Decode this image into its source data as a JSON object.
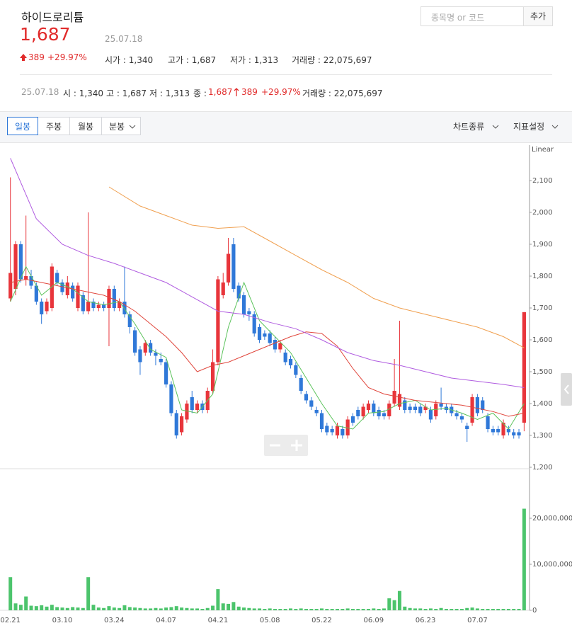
{
  "header": {
    "title": "하이드로리튬",
    "price": "1,687",
    "date": "25.07.18",
    "change": "389",
    "change_pct": "+29.97%",
    "open": "시가 : 1,340",
    "high": "고가 : 1,687",
    "low": "저가 : 1,313",
    "volume": "거래량 : 22,075,697"
  },
  "search": {
    "placeholder": "종목명 or 코드",
    "button": "추가"
  },
  "detail": {
    "date": "25.07.18",
    "open": "시 : 1,340",
    "high": "고 : 1,687",
    "low": "저 : 1,313",
    "close_label": "종 :",
    "close": "1,687",
    "change": "389",
    "change_pct": "+29.97%",
    "volume": "거래량 : 22,075,697"
  },
  "toolbar": {
    "tabs": [
      "일봉",
      "주봉",
      "월봉",
      "분봉"
    ],
    "chart_type": "차트종류",
    "indicators": "지표설정"
  },
  "chart_data": {
    "type": "candlestick",
    "scale_label": "Linear",
    "categories": [
      "02.21",
      null,
      null,
      null,
      null,
      null,
      null,
      null,
      null,
      null,
      "03.10",
      null,
      null,
      null,
      null,
      null,
      null,
      null,
      null,
      null,
      "03.24",
      null,
      null,
      null,
      null,
      null,
      null,
      null,
      null,
      null,
      "04.07",
      null,
      null,
      null,
      null,
      null,
      null,
      null,
      null,
      null,
      "04.21",
      null,
      null,
      null,
      null,
      null,
      null,
      null,
      null,
      null,
      "05.08",
      null,
      null,
      null,
      null,
      null,
      null,
      null,
      null,
      null,
      "05.22",
      null,
      null,
      null,
      null,
      null,
      null,
      null,
      null,
      null,
      "06.09",
      null,
      null,
      null,
      null,
      null,
      null,
      null,
      null,
      null,
      "06.23",
      null,
      null,
      null,
      null,
      null,
      null,
      null,
      null,
      null,
      "07.07",
      null,
      null,
      null,
      null,
      null,
      null,
      null,
      null,
      null
    ],
    "open": [
      1730,
      1760,
      1900,
      1790,
      1800,
      1770,
      1720,
      1690,
      1700,
      1810,
      1780,
      1740,
      1770,
      1700,
      1740,
      1690,
      1720,
      1700,
      1710,
      1700,
      1760,
      1700,
      1720,
      1680,
      1630,
      1570,
      1560,
      1590,
      1560,
      1540,
      1530,
      1460,
      1370,
      1310,
      1350,
      1420,
      1380,
      1400,
      1380,
      1440,
      1530,
      1740,
      1780,
      1900,
      1770,
      1740,
      1690,
      1680,
      1640,
      1620,
      1620,
      1600,
      1570,
      1560,
      1540,
      1520,
      1480,
      1430,
      1410,
      1380,
      1370,
      1330,
      1320,
      1300,
      1320,
      1300,
      1360,
      1380,
      1360,
      1380,
      1400,
      1380,
      1370,
      1360,
      1400,
      1390,
      1410,
      1390,
      1390,
      1390,
      1380,
      1380,
      1360,
      1400,
      1390,
      1390,
      1370,
      1360,
      1330,
      1340,
      1420,
      1410,
      1360,
      1320,
      1320,
      1300,
      1320,
      1310,
      1310,
      1340
    ],
    "high": [
      2110,
      1910,
      1910,
      1990,
      1820,
      1780,
      1730,
      1730,
      1840,
      1820,
      1790,
      1800,
      1780,
      1780,
      1750,
      2000,
      1730,
      1720,
      1720,
      1770,
      1770,
      1730,
      1830,
      1690,
      1640,
      1580,
      1600,
      1600,
      1570,
      1560,
      1540,
      1470,
      1380,
      1370,
      1410,
      1440,
      1410,
      1410,
      1450,
      1570,
      1800,
      1810,
      1920,
      1920,
      1780,
      1750,
      1700,
      1690,
      1650,
      1630,
      1630,
      1610,
      1600,
      1570,
      1550,
      1530,
      1490,
      1440,
      1420,
      1390,
      1380,
      1340,
      1330,
      1340,
      1330,
      1360,
      1370,
      1390,
      1400,
      1410,
      1410,
      1390,
      1380,
      1410,
      1540,
      1660,
      1420,
      1400,
      1400,
      1400,
      1400,
      1390,
      1410,
      1450,
      1400,
      1400,
      1380,
      1370,
      1340,
      1430,
      1430,
      1420,
      1370,
      1330,
      1330,
      1350,
      1330,
      1320,
      1320,
      1687
    ],
    "low": [
      1720,
      1740,
      1780,
      1770,
      1760,
      1710,
      1650,
      1680,
      1690,
      1770,
      1740,
      1730,
      1720,
      1690,
      1680,
      1680,
      1690,
      1690,
      1690,
      1580,
      1690,
      1690,
      1670,
      1620,
      1550,
      1490,
      1550,
      1550,
      1520,
      1520,
      1450,
      1360,
      1290,
      1300,
      1340,
      1370,
      1370,
      1370,
      1370,
      1430,
      1520,
      1730,
      1770,
      1750,
      1720,
      1670,
      1660,
      1610,
      1590,
      1600,
      1580,
      1560,
      1560,
      1520,
      1510,
      1480,
      1430,
      1400,
      1380,
      1360,
      1310,
      1300,
      1300,
      1290,
      1290,
      1290,
      1330,
      1350,
      1350,
      1370,
      1360,
      1350,
      1350,
      1350,
      1390,
      1380,
      1370,
      1370,
      1370,
      1360,
      1370,
      1340,
      1350,
      1380,
      1370,
      1360,
      1350,
      1340,
      1280,
      1330,
      1360,
      1370,
      1310,
      1300,
      1300,
      1290,
      1300,
      1290,
      1290,
      1313
    ],
    "close": [
      1810,
      1900,
      1790,
      1800,
      1770,
      1720,
      1680,
      1720,
      1830,
      1780,
      1750,
      1780,
      1730,
      1770,
      1690,
      1720,
      1700,
      1710,
      1700,
      1760,
      1700,
      1720,
      1680,
      1640,
      1560,
      1530,
      1590,
      1560,
      1550,
      1530,
      1460,
      1370,
      1300,
      1360,
      1400,
      1380,
      1400,
      1380,
      1440,
      1530,
      1790,
      1780,
      1870,
      1760,
      1730,
      1680,
      1680,
      1620,
      1600,
      1610,
      1590,
      1570,
      1590,
      1530,
      1520,
      1490,
      1440,
      1410,
      1390,
      1370,
      1320,
      1310,
      1310,
      1330,
      1300,
      1350,
      1340,
      1360,
      1390,
      1400,
      1370,
      1360,
      1360,
      1400,
      1440,
      1430,
      1380,
      1380,
      1380,
      1370,
      1390,
      1350,
      1400,
      1390,
      1380,
      1370,
      1360,
      1350,
      1320,
      1420,
      1370,
      1380,
      1320,
      1310,
      1310,
      1340,
      1310,
      1300,
      1300,
      1687
    ],
    "up_color": "#e8353b",
    "down_color": "#2f78d8",
    "lines": [
      {
        "color": "#5cc35c",
        "x": [
          0,
          3,
          6,
          9,
          12,
          15,
          18,
          21,
          24,
          27,
          30,
          33,
          36,
          39,
          42,
          45,
          48,
          51,
          54,
          57,
          60,
          63,
          66,
          69,
          72,
          75,
          78,
          81,
          84,
          87,
          90,
          93,
          96,
          99
        ],
        "values": [
          1720,
          1830,
          1740,
          1780,
          1760,
          1720,
          1710,
          1720,
          1650,
          1570,
          1545,
          1380,
          1370,
          1430,
          1640,
          1780,
          1660,
          1610,
          1560,
          1480,
          1400,
          1330,
          1320,
          1370,
          1375,
          1400,
          1410,
          1380,
          1385,
          1370,
          1350,
          1370,
          1320,
          1400
        ]
      },
      {
        "color": "#e0463c",
        "x": [
          0,
          3,
          6,
          9,
          12,
          15,
          18,
          21,
          24,
          27,
          30,
          33,
          36,
          39,
          42,
          45,
          48,
          51,
          54,
          57,
          60,
          63,
          66,
          69,
          72,
          75,
          78,
          81,
          84,
          87,
          90,
          93,
          96,
          99
        ],
        "values": [
          1780,
          1790,
          1780,
          1770,
          1760,
          1750,
          1740,
          1720,
          1690,
          1650,
          1610,
          1560,
          1500,
          1520,
          1530,
          1550,
          1570,
          1590,
          1610,
          1625,
          1620,
          1580,
          1510,
          1450,
          1430,
          1420,
          1410,
          1405,
          1400,
          1395,
          1385,
          1375,
          1360,
          1370
        ]
      },
      {
        "color": "#b05ce0",
        "x": [
          0,
          5,
          10,
          15,
          20,
          25,
          30,
          35,
          40,
          45,
          50,
          55,
          60,
          65,
          70,
          75,
          80,
          85,
          90,
          95,
          99
        ],
        "values": [
          2170,
          1980,
          1900,
          1865,
          1840,
          1810,
          1780,
          1735,
          1690,
          1680,
          1655,
          1635,
          1600,
          1560,
          1535,
          1520,
          1500,
          1480,
          1470,
          1460,
          1450
        ]
      },
      {
        "color": "#f0a050",
        "x": [
          19,
          25,
          30,
          35,
          40,
          45,
          50,
          55,
          60,
          65,
          70,
          75,
          80,
          85,
          90,
          95,
          99
        ],
        "values": [
          2080,
          2020,
          1990,
          1960,
          1950,
          1955,
          1910,
          1865,
          1820,
          1780,
          1730,
          1700,
          1680,
          1660,
          1640,
          1610,
          1575
        ]
      }
    ],
    "ylim": [
      1200,
      2200
    ],
    "yticks": [
      {
        "value": 1200,
        "label": "1,200"
      },
      {
        "value": 1300,
        "label": "1,300"
      },
      {
        "value": 1400,
        "label": "1,400"
      },
      {
        "value": 1500,
        "label": "1,500"
      },
      {
        "value": 1600,
        "label": "1,600"
      },
      {
        "value": 1700,
        "label": "1,700"
      },
      {
        "value": 1800,
        "label": "1,800"
      },
      {
        "value": 1900,
        "label": "1,900"
      },
      {
        "value": 2000,
        "label": "2,000"
      },
      {
        "value": 2100,
        "label": "2,100"
      }
    ],
    "volume": [
      7200000,
      1500000,
      1200000,
      3000000,
      1000000,
      900000,
      1100000,
      800000,
      1200000,
      700000,
      600000,
      500000,
      700000,
      600000,
      500000,
      7200000,
      1200000,
      600000,
      500000,
      900000,
      600000,
      500000,
      1100000,
      700000,
      600000,
      500000,
      400000,
      400000,
      500000,
      400000,
      600000,
      700000,
      900000,
      600000,
      500000,
      400000,
      400000,
      300000,
      500000,
      1000000,
      4600000,
      1500000,
      1400000,
      1800000,
      800000,
      600000,
      500000,
      400000,
      400000,
      300000,
      400000,
      300000,
      300000,
      300000,
      400000,
      300000,
      400000,
      300000,
      300000,
      300000,
      400000,
      300000,
      300000,
      300000,
      300000,
      400000,
      300000,
      300000,
      300000,
      300000,
      400000,
      300000,
      400000,
      2600000,
      2200000,
      4200000,
      800000,
      500000,
      400000,
      400000,
      300000,
      400000,
      300000,
      500000,
      300000,
      300000,
      300000,
      300000,
      500000,
      600000,
      400000,
      300000,
      300000,
      300000,
      300000,
      300000,
      300000,
      300000,
      300000,
      22075697
    ],
    "volume_color": "#4cc46c",
    "volume_ylim": [
      0,
      30000000
    ],
    "volume_ticks": [
      0,
      {
        "value": 10000000,
        "label": "10,000,000"
      },
      {
        "value": 20000000,
        "label": "20,000,000"
      }
    ]
  }
}
